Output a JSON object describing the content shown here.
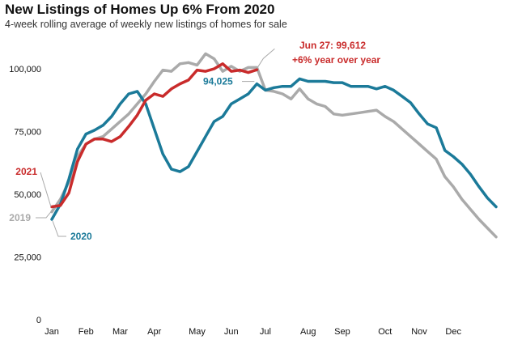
{
  "title": "New Listings of Homes Up 6% From 2020",
  "subtitle": "4-week rolling average of weekly new listings of homes for sale",
  "chart_data": {
    "type": "line",
    "title": "New Listings of Homes Up 6% From 2020",
    "subtitle": "4-week rolling average of weekly new listings of homes for sale",
    "xlabel": "",
    "ylabel": "",
    "x_range": [
      1,
      53
    ],
    "ylim": [
      0,
      110000
    ],
    "y_ticks": [
      0,
      25000,
      50000,
      75000,
      100000
    ],
    "y_tick_labels": [
      "0",
      "25,000",
      "50,000",
      "75,000",
      "100,000"
    ],
    "x_tick_weeks": [
      1,
      5,
      9,
      13,
      18,
      22,
      26,
      31,
      35,
      40,
      44,
      48
    ],
    "x_tick_labels": [
      "Jan",
      "Feb",
      "Mar",
      "Apr",
      "May",
      "Jun",
      "Jul",
      "Aug",
      "Sep",
      "Oct",
      "Nov",
      "Dec"
    ],
    "grid": false,
    "series": [
      {
        "name": "2019",
        "color": "#aaaaaa",
        "weeks": [
          1,
          2,
          3,
          4,
          5,
          6,
          7,
          8,
          9,
          10,
          11,
          12,
          13,
          14,
          15,
          16,
          17,
          18,
          19,
          20,
          21,
          22,
          23,
          24,
          25,
          26,
          27,
          28,
          29,
          30,
          31,
          32,
          33,
          34,
          35,
          36,
          37,
          38,
          39,
          40,
          41,
          42,
          43,
          44,
          45,
          46,
          47,
          48,
          49,
          50,
          51,
          52,
          53
        ],
        "values": [
          43000,
          48000,
          55000,
          65000,
          70000,
          72000,
          73000,
          76000,
          79000,
          82000,
          86000,
          90000,
          95000,
          99500,
          99000,
          102000,
          102500,
          101500,
          106000,
          104000,
          99000,
          101000,
          99000,
          100500,
          100500,
          91500,
          91000,
          90000,
          88000,
          92000,
          88000,
          86000,
          85000,
          82000,
          81500,
          82000,
          82500,
          83000,
          83500,
          81000,
          79000,
          76000,
          73000,
          70000,
          67000,
          64000,
          57000,
          53000,
          48000,
          44000,
          40000,
          36500,
          33000
        ]
      },
      {
        "name": "2020",
        "color": "#1b7a99",
        "weeks": [
          1,
          2,
          3,
          4,
          5,
          6,
          7,
          8,
          9,
          10,
          11,
          12,
          13,
          14,
          15,
          16,
          17,
          18,
          19,
          20,
          21,
          22,
          23,
          24,
          25,
          26,
          27,
          28,
          29,
          30,
          31,
          32,
          33,
          34,
          35,
          36,
          37,
          38,
          39,
          40,
          41,
          42,
          43,
          44,
          45,
          46,
          47,
          48,
          49,
          50,
          51,
          52,
          53
        ],
        "values": [
          40000,
          46000,
          56000,
          68000,
          74000,
          75500,
          77500,
          81000,
          86000,
          90000,
          91000,
          86000,
          76000,
          66000,
          60000,
          59000,
          61000,
          67000,
          73000,
          79000,
          81000,
          86000,
          88000,
          90000,
          94000,
          91500,
          92500,
          93000,
          93000,
          96000,
          95000,
          95000,
          95000,
          94500,
          94500,
          93000,
          93000,
          93000,
          92000,
          93000,
          91500,
          89000,
          86500,
          82000,
          78000,
          76500,
          67500,
          65000,
          62000,
          58000,
          53000,
          48500,
          45000
        ]
      },
      {
        "name": "2021",
        "color": "#c92b2b",
        "weeks": [
          1,
          2,
          3,
          4,
          5,
          6,
          7,
          8,
          9,
          10,
          11,
          12,
          13,
          14,
          15,
          16,
          17,
          18,
          19,
          20,
          21,
          22,
          23,
          24,
          25
        ],
        "values": [
          45000,
          45500,
          50500,
          63000,
          70000,
          72000,
          72000,
          71000,
          73000,
          77000,
          81500,
          87500,
          90000,
          89000,
          92000,
          94000,
          95500,
          99500,
          99000,
          100000,
          102000,
          99000,
          99500,
          98500,
          99612
        ]
      }
    ],
    "annotations": [
      {
        "text": "Jun 27: 99,612",
        "series": "2021",
        "week": 25,
        "value": 99612
      },
      {
        "text": "+6% year over year",
        "series": "2021",
        "week": 25
      },
      {
        "text": "94,025",
        "series": "2020",
        "week": 25,
        "value": 94025
      }
    ]
  }
}
